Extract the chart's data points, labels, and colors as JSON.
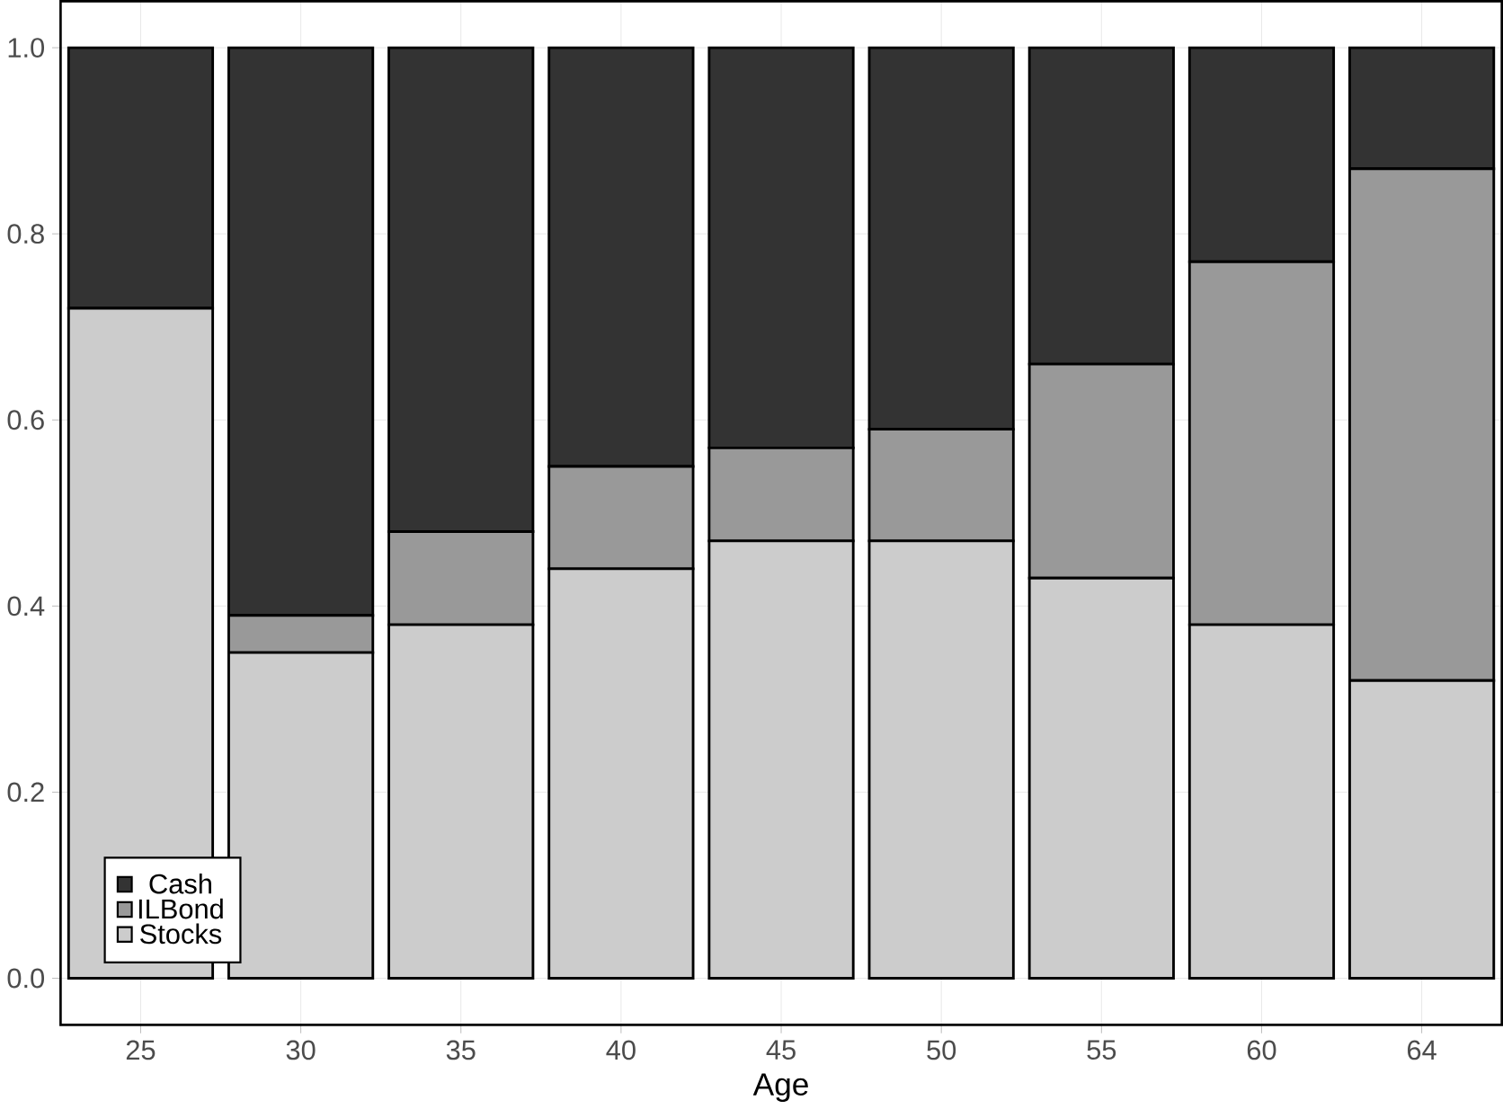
{
  "chart_data": {
    "type": "bar",
    "stacked": true,
    "xlabel": "Age",
    "categories": [
      "25",
      "30",
      "35",
      "40",
      "45",
      "50",
      "55",
      "60",
      "64"
    ],
    "series": [
      {
        "name": "Stocks",
        "color": "#cccccc",
        "values": [
          0.72,
          0.35,
          0.38,
          0.44,
          0.47,
          0.47,
          0.43,
          0.38,
          0.32
        ]
      },
      {
        "name": "ILBond",
        "color": "#999999",
        "values": [
          0,
          0.04,
          0.1,
          0.11,
          0.1,
          0.12,
          0.23,
          0.39,
          0.55
        ]
      },
      {
        "name": "Cash",
        "color": "#333333",
        "values": [
          0.28,
          0.61,
          0.52,
          0.45,
          0.43,
          0.41,
          0.34,
          0.23,
          0.13
        ]
      }
    ],
    "ylim": [
      -0.05,
      1.05
    ],
    "yticks": [
      {
        "value": 0,
        "label": "0.0"
      },
      {
        "value": 0.2,
        "label": "0.2"
      },
      {
        "value": 0.4,
        "label": "0.4"
      },
      {
        "value": 0.6,
        "label": "0.6"
      },
      {
        "value": 0.8,
        "label": "0.8"
      },
      {
        "value": 1,
        "label": "1.0"
      }
    ],
    "grid": true,
    "legend": "bottom left"
  }
}
